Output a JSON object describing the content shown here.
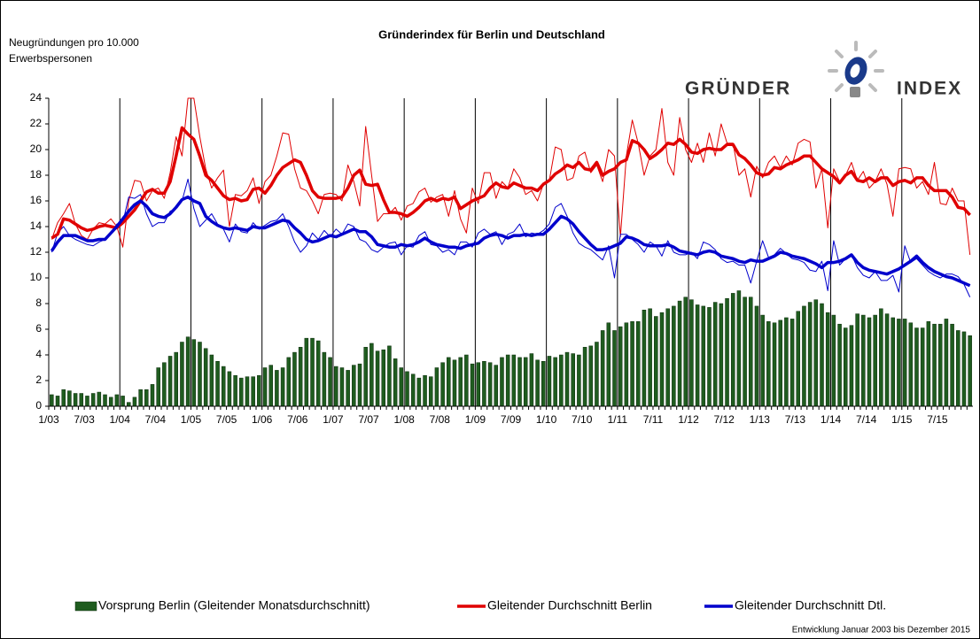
{
  "chart_data": {
    "type": "combo",
    "title": "Gründerindex für Berlin und Deutschland",
    "y_label": [
      "Neugründungen  pro 10.000",
      "Erwerbspersonen"
    ],
    "logo": [
      "GRÜNDER",
      "INDEX"
    ],
    "footnote": "Entwicklung Januar 2003 bis Dezember 2015",
    "ylim": [
      0,
      24
    ],
    "yticks": [
      0,
      2,
      4,
      6,
      8,
      10,
      12,
      14,
      16,
      18,
      20,
      22,
      24
    ],
    "categories": [
      "1/03",
      null,
      null,
      null,
      null,
      null,
      "7/03",
      null,
      null,
      null,
      null,
      null,
      "1/04",
      null,
      null,
      null,
      null,
      null,
      "7/04",
      null,
      null,
      null,
      null,
      null,
      "1/05",
      null,
      null,
      null,
      null,
      null,
      "7/05",
      null,
      null,
      null,
      null,
      null,
      "1/06",
      null,
      null,
      null,
      null,
      null,
      "7/06",
      null,
      null,
      null,
      null,
      null,
      "1/07",
      null,
      null,
      null,
      null,
      null,
      "7/07",
      null,
      null,
      null,
      null,
      null,
      "1/08",
      null,
      null,
      null,
      null,
      null,
      "7/08",
      null,
      null,
      null,
      null,
      null,
      "1/09",
      null,
      null,
      null,
      null,
      null,
      "7/09",
      null,
      null,
      null,
      null,
      null,
      "1/10",
      null,
      null,
      null,
      null,
      null,
      "7/10",
      null,
      null,
      null,
      null,
      null,
      "1/11",
      null,
      null,
      null,
      null,
      null,
      "7/11",
      null,
      null,
      null,
      null,
      null,
      "1/12",
      null,
      null,
      null,
      null,
      null,
      "7/12",
      null,
      null,
      null,
      null,
      null,
      "1/13",
      null,
      null,
      null,
      null,
      null,
      "7/13",
      null,
      null,
      null,
      null,
      null,
      "1/14",
      null,
      null,
      null,
      null,
      null,
      "7/14",
      null,
      null,
      null,
      null,
      null,
      "1/15",
      null,
      null,
      null,
      null,
      null,
      "7/15",
      null,
      null,
      null,
      null,
      null
    ],
    "series": [
      {
        "name": "Vorsprung Berlin (Gleitender Monatsdurchschnitt)",
        "type": "bar",
        "color": "#1f5c1f",
        "values": [
          0.9,
          0.8,
          1.3,
          1.2,
          1.0,
          1.0,
          0.8,
          1.0,
          1.1,
          0.9,
          0.7,
          0.9,
          0.8,
          0.3,
          0.7,
          1.3,
          1.3,
          1.7,
          3.0,
          3.4,
          3.9,
          4.2,
          5.0,
          5.4,
          5.2,
          5.0,
          4.5,
          4.0,
          3.5,
          3.1,
          2.7,
          2.4,
          2.2,
          2.3,
          2.3,
          2.4,
          3.0,
          3.2,
          2.8,
          3.0,
          3.8,
          4.2,
          4.6,
          5.3,
          5.3,
          5.1,
          4.2,
          3.8,
          3.1,
          3.0,
          2.8,
          3.2,
          3.3,
          4.6,
          4.9,
          4.3,
          4.4,
          4.7,
          3.7,
          3.0,
          2.7,
          2.5,
          2.2,
          2.4,
          2.3,
          3.0,
          3.4,
          3.8,
          3.6,
          3.8,
          4.0,
          3.3,
          3.4,
          3.5,
          3.4,
          3.2,
          3.8,
          4.0,
          4.0,
          3.8,
          3.8,
          4.1,
          3.6,
          3.5,
          3.9,
          3.8,
          4.0,
          4.2,
          4.1,
          4.0,
          4.6,
          4.7,
          5.0,
          5.9,
          6.5,
          5.9,
          6.2,
          6.5,
          6.6,
          6.6,
          7.5,
          7.6,
          7.0,
          7.3,
          7.6,
          7.8,
          8.2,
          8.5,
          8.3,
          7.9,
          7.8,
          7.7,
          8.1,
          8.0,
          8.4,
          8.8,
          9.0,
          8.5,
          8.5,
          7.8,
          7.1,
          6.6,
          6.5,
          6.7,
          6.9,
          6.8,
          7.4,
          7.8,
          8.1,
          8.3,
          8.0,
          7.3,
          7.1,
          6.4,
          6.1,
          6.3,
          7.2,
          7.1,
          6.9,
          7.1,
          7.6,
          7.2,
          6.9,
          6.8,
          6.8,
          6.5,
          6.1,
          6.1,
          6.6,
          6.4,
          6.4,
          6.8,
          6.4,
          5.9,
          5.8,
          5.5
        ]
      },
      {
        "type": "line",
        "color": "#e00000",
        "linewidth": 1,
        "values": [
          13.0,
          14.3,
          15.0,
          15.8,
          14.2,
          13.3,
          13.0,
          13.8,
          14.3,
          14.2,
          14.6,
          14.0,
          12.4,
          16.0,
          17.6,
          17.5,
          16.0,
          16.8,
          17.0,
          16.2,
          18.2,
          21.0,
          19.5,
          24.0,
          24.0,
          21.0,
          18.5,
          17.0,
          17.8,
          18.4,
          14.0,
          16.5,
          16.4,
          16.8,
          17.8,
          15.8,
          17.5,
          18.0,
          19.5,
          21.3,
          21.2,
          18.5,
          17.0,
          16.8,
          16.0,
          15.0,
          16.5,
          16.6,
          16.5,
          16.0,
          18.8,
          17.5,
          15.6,
          21.8,
          18.0,
          14.4,
          15.0,
          15.0,
          15.5,
          14.5,
          15.6,
          15.8,
          16.7,
          17.0,
          15.9,
          16.3,
          16.5,
          14.8,
          16.8,
          14.6,
          13.5,
          17.0,
          15.8,
          18.2,
          18.2,
          16.2,
          17.5,
          17.0,
          18.5,
          17.8,
          16.5,
          16.8,
          16.0,
          17.3,
          17.6,
          20.2,
          20.0,
          17.6,
          17.8,
          19.5,
          19.8,
          18.2,
          18.8,
          17.5,
          20.0,
          19.5,
          13.2,
          19.5,
          22.3,
          20.5,
          18.0,
          19.5,
          20.0,
          23.2,
          19.0,
          18.0,
          22.5,
          20.0,
          19.0,
          20.5,
          19.0,
          21.3,
          19.5,
          22.0,
          20.5,
          20.5,
          18.0,
          18.5,
          16.3,
          18.7,
          17.8,
          19.0,
          19.5,
          18.6,
          19.5,
          18.8,
          20.5,
          20.8,
          20.6,
          17.0,
          18.5,
          13.9,
          18.5,
          17.5,
          18.0,
          19.0,
          17.6,
          18.3,
          17.0,
          17.5,
          18.5,
          17.3,
          14.8,
          18.5,
          18.6,
          18.5,
          17.0,
          17.5,
          16.5,
          19.0,
          15.8,
          15.7,
          17.0,
          16.0,
          16.0,
          11.8
        ]
      },
      {
        "name": "Gleitender Durchschnitt Berlin",
        "type": "line",
        "color": "#e00000",
        "linewidth": 3.5,
        "values": [
          13.1,
          13.4,
          14.6,
          14.5,
          14.2,
          13.9,
          13.7,
          13.8,
          14.0,
          14.1,
          14.0,
          13.9,
          14.3,
          14.8,
          15.3,
          16.0,
          16.7,
          16.9,
          16.6,
          16.6,
          17.5,
          19.5,
          21.7,
          21.2,
          20.8,
          19.5,
          18.0,
          17.6,
          17.0,
          16.4,
          16.1,
          16.2,
          16.0,
          16.1,
          16.9,
          17.0,
          16.6,
          17.2,
          18.0,
          18.6,
          18.9,
          19.2,
          19.0,
          18.0,
          16.8,
          16.3,
          16.2,
          16.2,
          16.2,
          16.3,
          17.0,
          18.0,
          18.4,
          17.3,
          17.2,
          17.3,
          16.1,
          15.1,
          15.1,
          15.0,
          14.8,
          15.1,
          15.5,
          16.0,
          16.2,
          16.0,
          16.2,
          16.1,
          16.3,
          15.4,
          15.7,
          16.0,
          16.2,
          16.4,
          17.0,
          17.4,
          17.1,
          17.0,
          17.4,
          17.2,
          17.0,
          17.0,
          16.8,
          17.3,
          17.6,
          18.1,
          18.4,
          18.8,
          18.6,
          19.0,
          18.5,
          18.4,
          19.0,
          18.0,
          18.3,
          18.5,
          19.0,
          19.2,
          20.7,
          20.5,
          20.0,
          19.3,
          19.6,
          20.0,
          20.5,
          20.4,
          20.8,
          20.4,
          19.8,
          19.7,
          20.0,
          20.1,
          20.0,
          20.0,
          20.4,
          20.4,
          19.6,
          19.3,
          18.8,
          18.2,
          18.0,
          18.1,
          18.6,
          18.5,
          18.8,
          19.0,
          19.2,
          19.5,
          19.5,
          19.0,
          18.5,
          18.2,
          17.9,
          17.4,
          18.0,
          18.3,
          17.6,
          17.5,
          17.8,
          17.5,
          17.8,
          17.8,
          17.2,
          17.5,
          17.6,
          17.4,
          17.8,
          17.8,
          17.2,
          16.8,
          16.8,
          16.8,
          16.3,
          15.5,
          15.4,
          14.9
        ]
      },
      {
        "type": "line",
        "color": "#0000cc",
        "linewidth": 1,
        "values": [
          12.0,
          13.5,
          14.0,
          13.3,
          13.0,
          12.8,
          12.6,
          12.5,
          12.8,
          13.0,
          13.4,
          14.2,
          14.3,
          16.3,
          16.2,
          16.5,
          15.0,
          14.0,
          14.3,
          14.3,
          15.2,
          15.4,
          16.0,
          17.7,
          15.4,
          14.0,
          14.5,
          15.0,
          14.2,
          13.8,
          12.8,
          14.2,
          13.6,
          13.5,
          14.3,
          13.8,
          14.1,
          14.4,
          14.5,
          15.0,
          14.0,
          12.8,
          12.0,
          12.5,
          13.5,
          13.0,
          13.7,
          13.2,
          13.8,
          13.4,
          14.2,
          14.0,
          13.0,
          12.8,
          12.2,
          12.0,
          12.4,
          12.7,
          12.8,
          11.8,
          12.5,
          12.4,
          13.3,
          13.6,
          12.6,
          12.5,
          12.0,
          12.2,
          11.8,
          12.8,
          12.8,
          12.4,
          13.5,
          13.8,
          13.4,
          13.6,
          12.6,
          13.4,
          13.6,
          14.2,
          13.2,
          13.5,
          13.4,
          13.7,
          14.2,
          15.5,
          15.8,
          14.8,
          13.5,
          12.7,
          12.4,
          12.2,
          11.8,
          11.4,
          12.5,
          10.0,
          13.4,
          13.4,
          13.0,
          12.6,
          12.0,
          12.8,
          12.5,
          11.7,
          12.9,
          12.0,
          11.8,
          11.8,
          12.0,
          11.5,
          12.8,
          12.6,
          12.2,
          11.5,
          11.2,
          11.3,
          11.0,
          11.0,
          9.6,
          11.3,
          12.9,
          11.6,
          11.8,
          12.3,
          11.9,
          11.5,
          11.4,
          11.2,
          10.6,
          10.5,
          11.3,
          9.0,
          12.9,
          11.0,
          11.5,
          11.8,
          10.8,
          10.2,
          10.0,
          10.5,
          9.8,
          9.8,
          10.2,
          8.9,
          12.5,
          11.2,
          11.5,
          11.0,
          10.5,
          10.2,
          10.0,
          10.3,
          10.3,
          10.1,
          9.5,
          8.5
        ]
      },
      {
        "name": "Gleitender Durchschnitt Dtl.",
        "type": "line",
        "color": "#0000cc",
        "linewidth": 3.5,
        "values": [
          12.1,
          12.8,
          13.3,
          13.3,
          13.3,
          13.1,
          12.9,
          12.9,
          13.0,
          13.0,
          13.5,
          14.0,
          14.6,
          15.2,
          15.7,
          16.0,
          15.6,
          15.0,
          14.8,
          14.7,
          15.0,
          15.5,
          16.1,
          16.3,
          16.0,
          15.8,
          14.8,
          14.4,
          14.1,
          13.9,
          13.8,
          13.9,
          13.8,
          13.7,
          14.0,
          13.9,
          13.9,
          14.1,
          14.3,
          14.5,
          14.4,
          13.9,
          13.5,
          13.0,
          12.8,
          12.9,
          13.1,
          13.3,
          13.2,
          13.4,
          13.6,
          13.8,
          13.6,
          13.6,
          13.2,
          12.6,
          12.5,
          12.4,
          12.4,
          12.6,
          12.5,
          12.6,
          12.8,
          13.1,
          12.8,
          12.6,
          12.5,
          12.4,
          12.4,
          12.3,
          12.5,
          12.6,
          12.7,
          13.1,
          13.3,
          13.4,
          13.3,
          13.1,
          13.3,
          13.3,
          13.4,
          13.3,
          13.4,
          13.4,
          13.8,
          14.3,
          14.8,
          14.6,
          14.2,
          13.6,
          13.1,
          12.6,
          12.2,
          12.2,
          12.3,
          12.5,
          12.7,
          13.2,
          13.1,
          12.9,
          12.6,
          12.5,
          12.5,
          12.5,
          12.6,
          12.4,
          12.1,
          12.0,
          11.9,
          11.8,
          12.0,
          12.1,
          12.0,
          11.7,
          11.6,
          11.5,
          11.3,
          11.2,
          11.4,
          11.3,
          11.3,
          11.5,
          11.7,
          12.0,
          11.9,
          11.7,
          11.6,
          11.5,
          11.3,
          11.1,
          10.8,
          11.2,
          11.2,
          11.3,
          11.5,
          11.8,
          11.2,
          10.8,
          10.6,
          10.5,
          10.4,
          10.3,
          10.5,
          10.7,
          11.0,
          11.3,
          11.7,
          11.2,
          10.8,
          10.5,
          10.3,
          10.1,
          10.0,
          9.8,
          9.6,
          9.4
        ]
      }
    ]
  }
}
